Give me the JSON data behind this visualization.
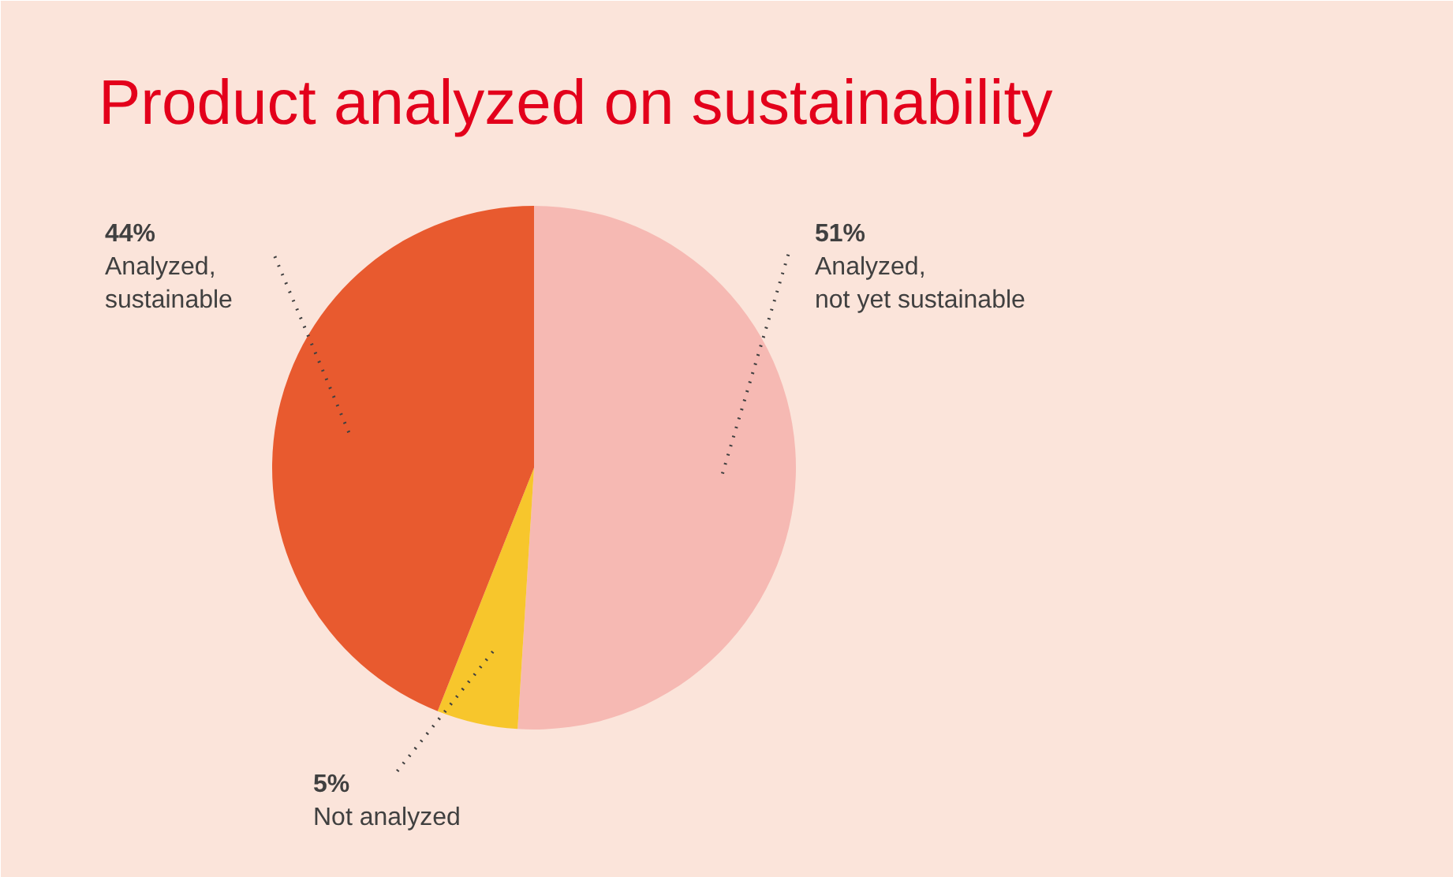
{
  "chart_data": {
    "type": "pie",
    "title": "Product analyzed on sustainability",
    "categories": [
      "Analyzed,\nnot yet sustainable",
      "Not analyzed",
      "Analyzed,\nsustainable"
    ],
    "values": [
      51,
      5,
      44
    ],
    "colors": [
      "#f6b9b3",
      "#f7c62c",
      "#e85a2f"
    ],
    "value_labels": [
      "51%",
      "5%",
      "44%"
    ]
  }
}
